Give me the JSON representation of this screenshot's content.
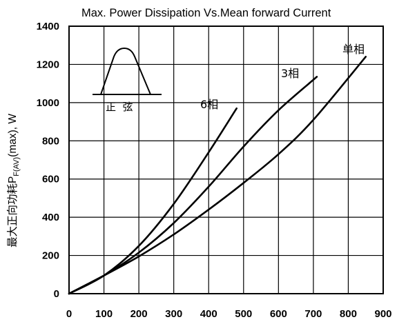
{
  "chart_data": {
    "type": "line",
    "title": "Max. Power Dissipation Vs.Mean forward Current",
    "xlabel": "",
    "ylabel_main": "最大正向功耗P",
    "ylabel_sub": "F(AV)",
    "ylabel_tail": "(max), W",
    "xlim": [
      0,
      900
    ],
    "ylim": [
      0,
      1400
    ],
    "x_ticks": [
      0,
      100,
      200,
      300,
      400,
      500,
      600,
      700,
      800,
      900
    ],
    "y_ticks": [
      0,
      200,
      400,
      600,
      800,
      1000,
      1200,
      1400
    ],
    "grid": true,
    "series": [
      {
        "name": "6相",
        "points": [
          [
            0,
            0
          ],
          [
            100,
            95
          ],
          [
            200,
            250
          ],
          [
            300,
            470
          ],
          [
            400,
            740
          ],
          [
            480,
            970
          ]
        ]
      },
      {
        "name": "3相",
        "points": [
          [
            0,
            0
          ],
          [
            100,
            95
          ],
          [
            200,
            215
          ],
          [
            300,
            370
          ],
          [
            400,
            560
          ],
          [
            500,
            770
          ],
          [
            600,
            960
          ],
          [
            710,
            1135
          ]
        ]
      },
      {
        "name": "单相",
        "points": [
          [
            0,
            0
          ],
          [
            100,
            95
          ],
          [
            200,
            195
          ],
          [
            300,
            310
          ],
          [
            400,
            440
          ],
          [
            500,
            580
          ],
          [
            600,
            730
          ],
          [
            700,
            910
          ],
          [
            850,
            1240
          ]
        ]
      }
    ],
    "inset": {
      "label": "正  弦"
    }
  }
}
